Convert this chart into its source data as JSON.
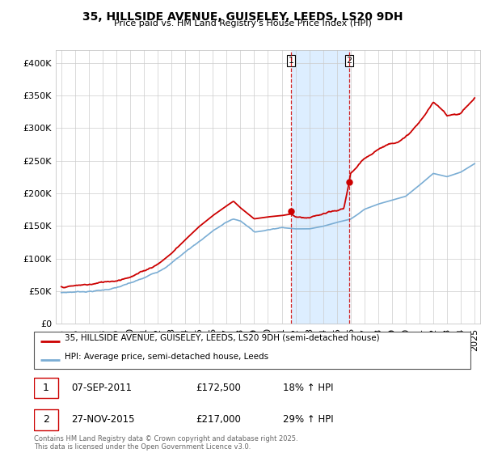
{
  "title": "35, HILLSIDE AVENUE, GUISELEY, LEEDS, LS20 9DH",
  "subtitle": "Price paid vs. HM Land Registry's House Price Index (HPI)",
  "legend_line1": "35, HILLSIDE AVENUE, GUISELEY, LEEDS, LS20 9DH (semi-detached house)",
  "legend_line2": "HPI: Average price, semi-detached house, Leeds",
  "annotation1_date": "07-SEP-2011",
  "annotation1_price": "£172,500",
  "annotation1_hpi": "18% ↑ HPI",
  "annotation2_date": "27-NOV-2015",
  "annotation2_price": "£217,000",
  "annotation2_hpi": "29% ↑ HPI",
  "footer": "Contains HM Land Registry data © Crown copyright and database right 2025.\nThis data is licensed under the Open Government Licence v3.0.",
  "red_color": "#cc0000",
  "blue_color": "#7aadd4",
  "shade_color": "#ddeeff",
  "ylim": [
    0,
    420000
  ],
  "yticks": [
    0,
    50000,
    100000,
    150000,
    200000,
    250000,
    300000,
    350000,
    400000
  ],
  "sale1_x": 2011.68,
  "sale1_y": 172500,
  "sale2_x": 2015.9,
  "sale2_y": 217000,
  "vline1_x": 2011.68,
  "vline2_x": 2015.9,
  "xmin": 1994.6,
  "xmax": 2025.4
}
